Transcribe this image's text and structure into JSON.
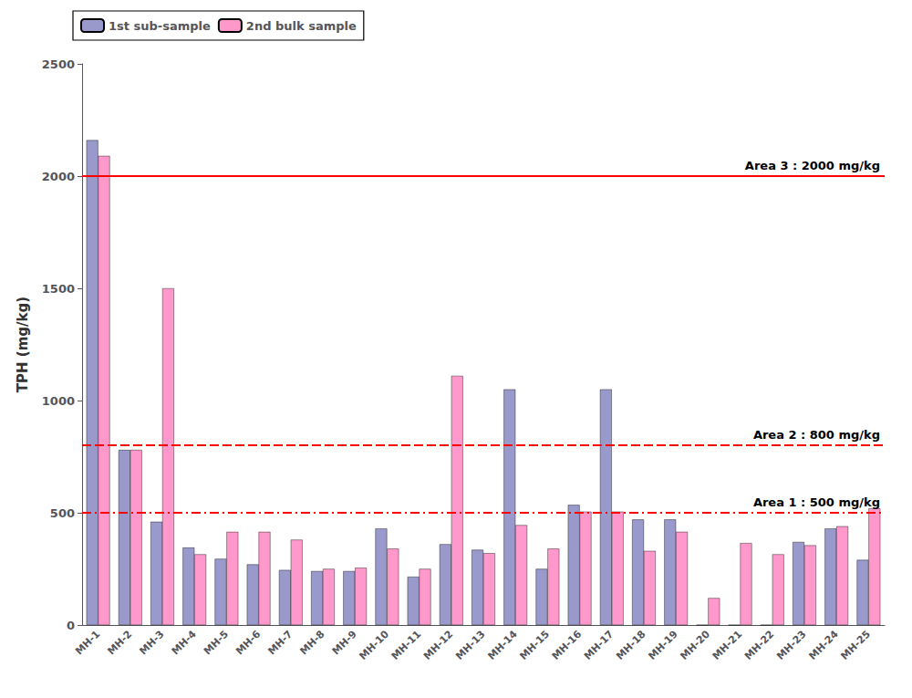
{
  "chart_data": {
    "type": "bar",
    "categories": [
      "MH-1",
      "MH-2",
      "MH-3",
      "MH-4",
      "MH-5",
      "MH-6",
      "MH-7",
      "MH-8",
      "MH-9",
      "MH-10",
      "MH-11",
      "MH-12",
      "MH-13",
      "MH-14",
      "MH-15",
      "MH-16",
      "MH-17",
      "MH-18",
      "MH-19",
      "MH-20",
      "MH-21",
      "MH-22",
      "MH-23",
      "MH-24",
      "MH-25"
    ],
    "series": [
      {
        "name": "1st sub-sample",
        "color": "#9999cc",
        "values": [
          2160,
          780,
          460,
          345,
          295,
          270,
          245,
          240,
          240,
          430,
          215,
          360,
          335,
          1050,
          250,
          535,
          1050,
          470,
          470,
          0,
          0,
          0,
          370,
          430,
          290
        ]
      },
      {
        "name": "2nd bulk sample",
        "color": "#ff99cc",
        "values": [
          2090,
          780,
          1500,
          315,
          415,
          415,
          380,
          250,
          255,
          340,
          250,
          1110,
          320,
          445,
          340,
          505,
          505,
          330,
          415,
          120,
          365,
          315,
          355,
          440,
          520
        ]
      }
    ],
    "ylabel": "TPH (mg/kg)",
    "ylim": [
      0,
      2500
    ],
    "yticks": [
      0,
      500,
      1000,
      1500,
      2000,
      2500
    ],
    "reference_lines": [
      {
        "value": 2000,
        "label": "Area 3 : 2000 mg/kg",
        "color": "red",
        "line_style": "solid"
      },
      {
        "value": 800,
        "label": "Area 2 : 800 mg/kg",
        "color": "red",
        "line_style": "dashed"
      },
      {
        "value": 500,
        "label": "Area 1 : 500 mg/kg",
        "color": "red",
        "line_style": "dashdot"
      }
    ],
    "legend": "upper left",
    "grid": false
  }
}
